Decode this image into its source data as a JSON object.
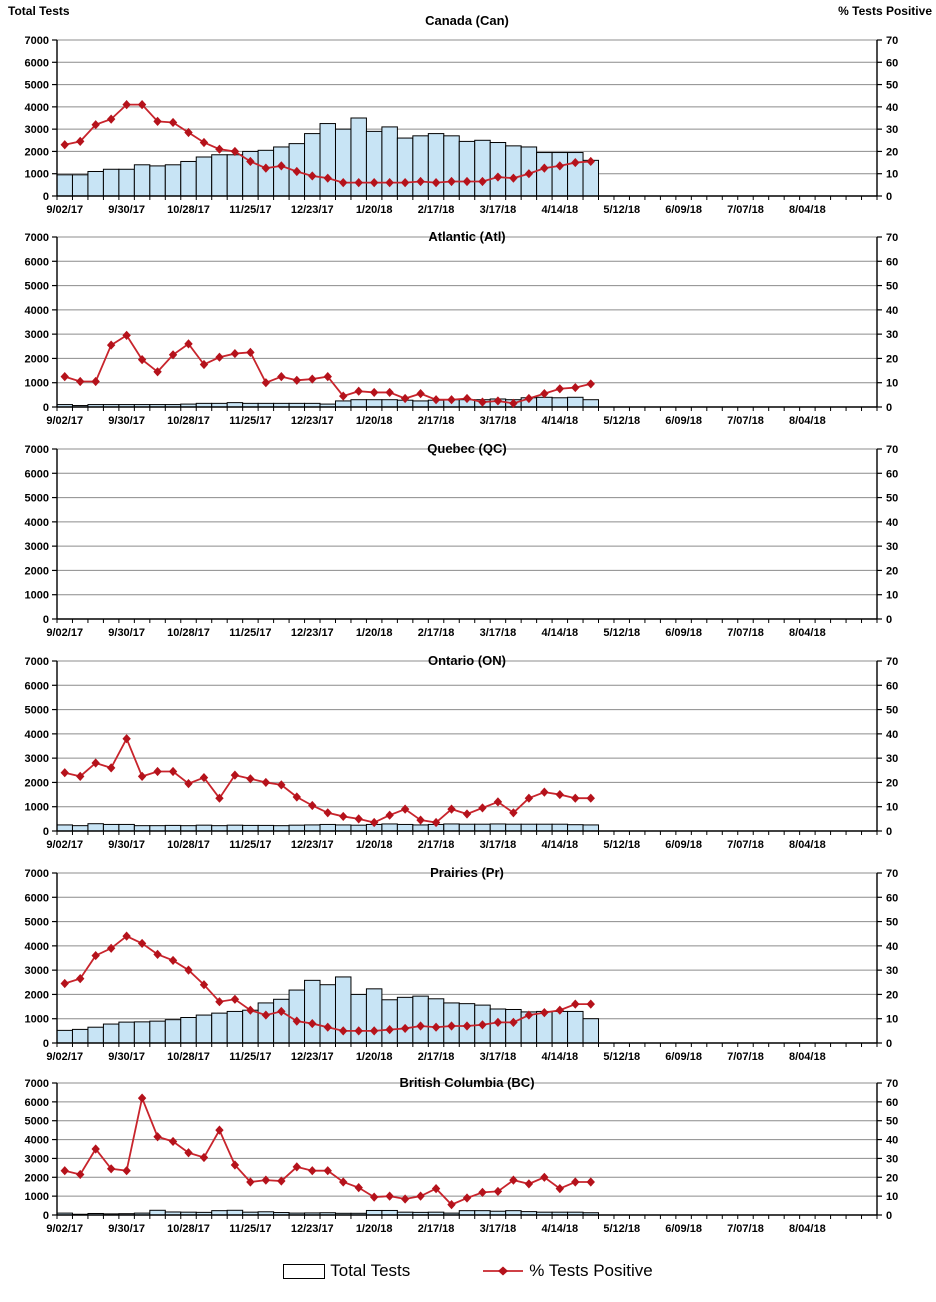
{
  "header": {
    "left_axis_title": "Total Tests",
    "right_axis_title": "% Tests Positive"
  },
  "legend": {
    "bar_label": "Total Tests",
    "line_label": "% Tests Positive"
  },
  "colors": {
    "bar_fill": "#C8E4F5",
    "bar_border": "#000000",
    "line": "#C8242C",
    "marker": "#B5121B",
    "gridline": "#8C8C8C",
    "axis": "#000000"
  },
  "axes": {
    "y_left": {
      "label": "Total Tests",
      "min": 0,
      "max": 7000,
      "step": 1000
    },
    "y_right": {
      "label": "% Tests Positive",
      "min": 0,
      "max": 70,
      "step": 10
    },
    "weeks_total": 53,
    "label_every_weeks": 4,
    "x_tick_labels": [
      "9/02/17",
      "9/30/17",
      "10/28/17",
      "11/25/17",
      "12/23/17",
      "1/20/18",
      "2/17/18",
      "3/17/18",
      "4/14/18",
      "5/12/18",
      "6/09/18",
      "7/07/18",
      "8/04/18"
    ],
    "grid": true
  },
  "chart_data": [
    {
      "type": "bar",
      "title": "Canada (Can)",
      "x_start": "9/02/17",
      "x_interval": "weekly",
      "ylim_left": [
        0,
        7000
      ],
      "ylim_right": [
        0,
        70
      ],
      "series": [
        {
          "name": "Total Tests",
          "type": "bar",
          "axis": "left",
          "values": [
            950,
            950,
            1100,
            1200,
            1200,
            1400,
            1350,
            1400,
            1550,
            1750,
            1850,
            1850,
            2000,
            2050,
            2200,
            2350,
            2800,
            3250,
            3000,
            3500,
            2900,
            3100,
            2600,
            2700,
            2800,
            2700,
            2450,
            2500,
            2400,
            2250,
            2200,
            1950,
            1950,
            1950,
            1600
          ]
        },
        {
          "name": "% Tests Positive",
          "type": "line",
          "axis": "right",
          "values": [
            23,
            24.5,
            32,
            34.5,
            41,
            41,
            33.5,
            33,
            28.5,
            24,
            21,
            20,
            15.5,
            12.5,
            13.5,
            11,
            9,
            8,
            6,
            6,
            6,
            6,
            6,
            6.5,
            6,
            6.5,
            6.5,
            6.5,
            8.5,
            8,
            10,
            12.5,
            13.5,
            15,
            15.5
          ]
        }
      ]
    },
    {
      "type": "bar",
      "title": "Atlantic (Atl)",
      "x_start": "9/02/17",
      "x_interval": "weekly",
      "ylim_left": [
        0,
        7000
      ],
      "ylim_right": [
        0,
        70
      ],
      "series": [
        {
          "name": "Total Tests",
          "type": "bar",
          "axis": "left",
          "values": [
            100,
            60,
            100,
            100,
            100,
            100,
            100,
            100,
            120,
            150,
            150,
            180,
            150,
            150,
            150,
            150,
            150,
            120,
            250,
            300,
            300,
            300,
            280,
            250,
            280,
            300,
            300,
            300,
            330,
            300,
            380,
            400,
            380,
            400,
            300
          ]
        },
        {
          "name": "% Tests Positive",
          "type": "line",
          "axis": "right",
          "values": [
            12.5,
            10.5,
            10.5,
            25.5,
            29.5,
            19.5,
            14.5,
            21.5,
            26,
            17.5,
            20.5,
            22,
            22.5,
            10,
            12.5,
            11,
            11.5,
            12.5,
            4.5,
            6.5,
            6,
            6,
            3.5,
            5.5,
            3,
            3,
            3.5,
            2,
            2.5,
            1.5,
            3.5,
            5.5,
            7.5,
            8,
            9.5
          ]
        }
      ]
    },
    {
      "type": "bar",
      "title": "Quebec (QC)",
      "x_start": "9/02/17",
      "x_interval": "weekly",
      "ylim_left": [
        0,
        7000
      ],
      "ylim_right": [
        0,
        70
      ],
      "series": [
        {
          "name": "Total Tests",
          "type": "bar",
          "axis": "left",
          "values": []
        },
        {
          "name": "% Tests Positive",
          "type": "line",
          "axis": "right",
          "values": []
        }
      ]
    },
    {
      "type": "bar",
      "title": "Ontario (ON)",
      "x_start": "9/02/17",
      "x_interval": "weekly",
      "ylim_left": [
        0,
        7000
      ],
      "ylim_right": [
        0,
        70
      ],
      "series": [
        {
          "name": "Total Tests",
          "type": "bar",
          "axis": "left",
          "values": [
            250,
            220,
            300,
            270,
            270,
            220,
            220,
            230,
            220,
            240,
            220,
            240,
            230,
            230,
            220,
            240,
            250,
            270,
            250,
            240,
            270,
            290,
            270,
            250,
            270,
            290,
            280,
            280,
            290,
            280,
            280,
            280,
            280,
            260,
            250
          ]
        },
        {
          "name": "% Tests Positive",
          "type": "line",
          "axis": "right",
          "values": [
            24,
            22.5,
            28,
            26,
            38,
            22.5,
            24.5,
            24.5,
            19.5,
            22,
            13.5,
            23,
            21.5,
            20,
            19,
            14,
            10.5,
            7.5,
            6,
            5,
            3.5,
            6.5,
            9,
            4.5,
            3.5,
            9,
            7,
            9.5,
            12,
            7.5,
            13.5,
            16,
            15,
            13.5,
            13.5
          ]
        }
      ]
    },
    {
      "type": "bar",
      "title": "Prairies (Pr)",
      "x_start": "9/02/17",
      "x_interval": "weekly",
      "ylim_left": [
        0,
        7000
      ],
      "ylim_right": [
        0,
        70
      ],
      "series": [
        {
          "name": "Total Tests",
          "type": "bar",
          "axis": "left",
          "values": [
            520,
            560,
            650,
            780,
            860,
            870,
            900,
            960,
            1050,
            1150,
            1230,
            1300,
            1350,
            1650,
            1800,
            2180,
            2580,
            2400,
            2720,
            2000,
            2230,
            1780,
            1880,
            1930,
            1820,
            1650,
            1620,
            1560,
            1400,
            1380,
            1280,
            1300,
            1300,
            1300,
            1000
          ]
        },
        {
          "name": "% Tests Positive",
          "type": "line",
          "axis": "right",
          "values": [
            24.5,
            26.5,
            36,
            39,
            44,
            41,
            36.5,
            34,
            30,
            24,
            17,
            18,
            13.5,
            11.5,
            13,
            9,
            8,
            6.5,
            5,
            5,
            5,
            5.5,
            6,
            7,
            6.5,
            7,
            7,
            7.5,
            8.5,
            8.5,
            11.5,
            12.5,
            13.5,
            16,
            16
          ]
        }
      ]
    },
    {
      "type": "bar",
      "title": "British Columbia (BC)",
      "x_start": "9/02/17",
      "x_interval": "weekly",
      "ylim_left": [
        0,
        7000
      ],
      "ylim_right": [
        0,
        70
      ],
      "series": [
        {
          "name": "Total Tests",
          "type": "bar",
          "axis": "left",
          "values": [
            100,
            40,
            80,
            60,
            70,
            100,
            250,
            160,
            150,
            140,
            230,
            250,
            150,
            170,
            130,
            100,
            110,
            120,
            90,
            90,
            240,
            240,
            150,
            140,
            150,
            100,
            230,
            230,
            200,
            230,
            180,
            150,
            150,
            150,
            120
          ]
        },
        {
          "name": "% Tests Positive",
          "type": "line",
          "axis": "right",
          "values": [
            23.5,
            21.5,
            35,
            24.5,
            23.5,
            62,
            41.5,
            39,
            33,
            30.5,
            45,
            26.5,
            17.5,
            18.5,
            18,
            25.5,
            23.5,
            23.5,
            17.5,
            14.5,
            9.5,
            10,
            8.5,
            10,
            14,
            5.5,
            9,
            12,
            12.5,
            18.5,
            16.5,
            20,
            14,
            17.5,
            17.5
          ]
        }
      ]
    }
  ]
}
